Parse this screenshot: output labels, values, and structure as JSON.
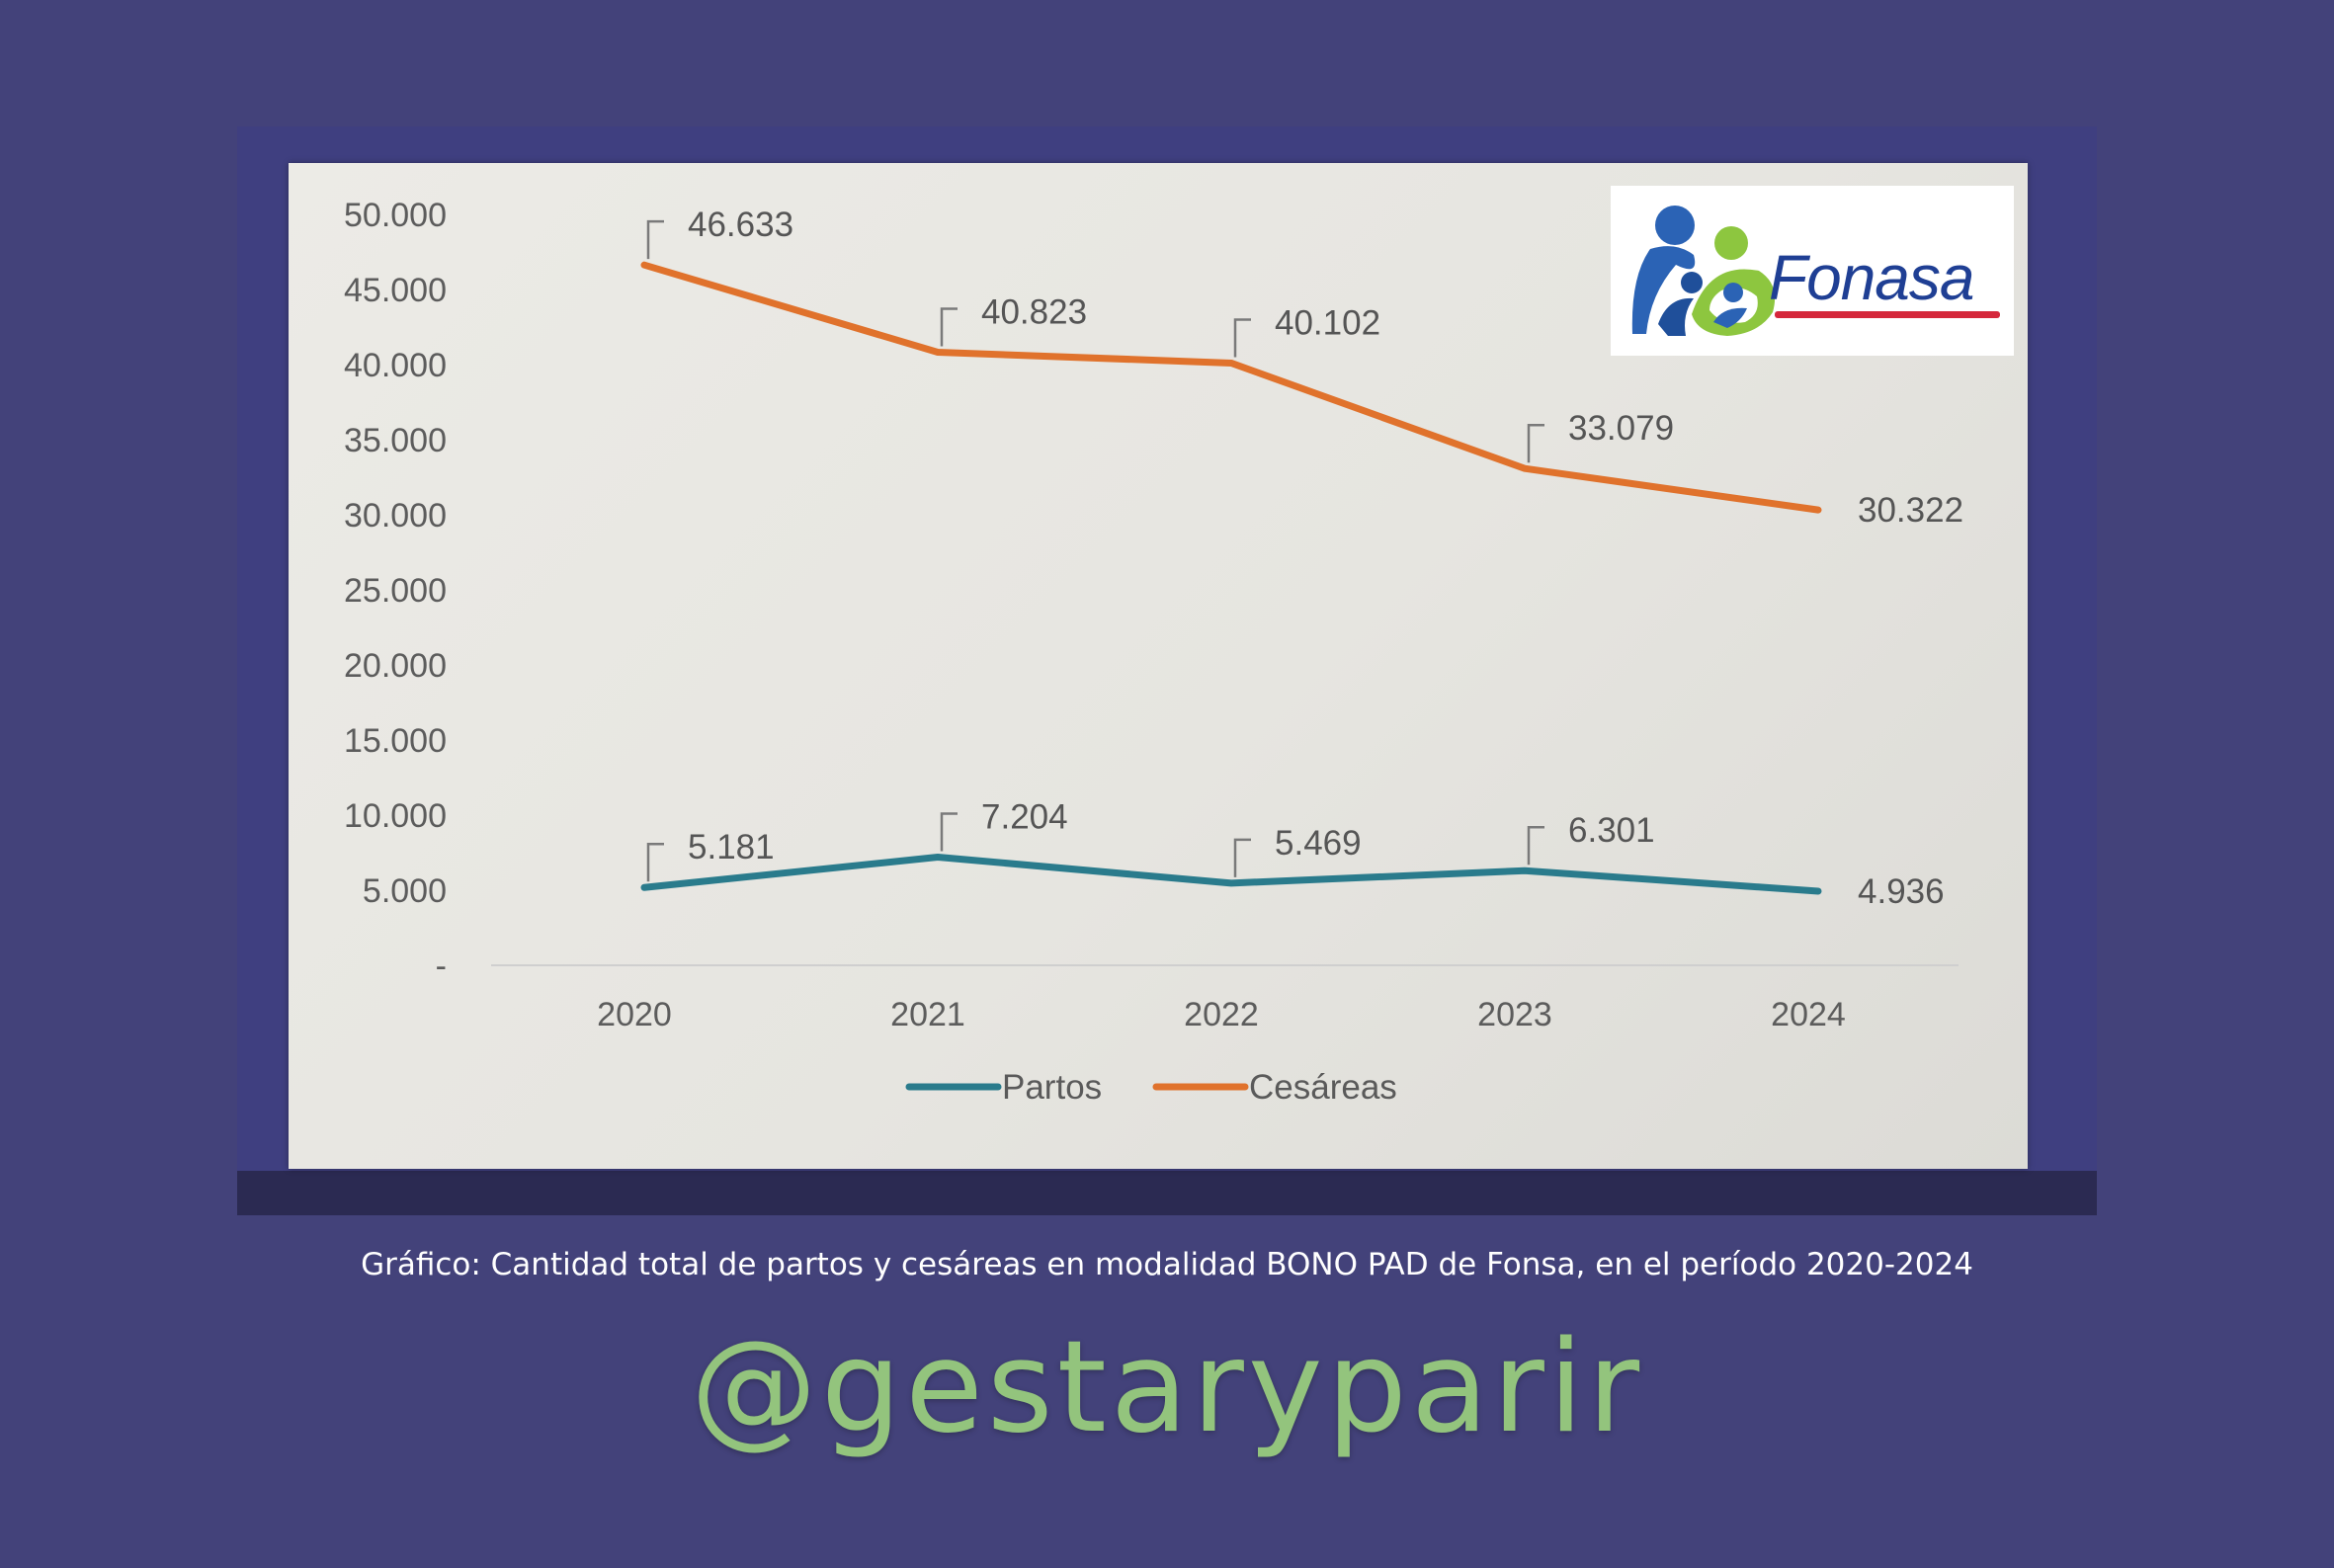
{
  "caption": "Gráfico: Cantidad total de partos y cesáreas en modalidad BONO PAD de Fonsa, en el período 2020-2024",
  "handle": "@gestaryparir",
  "logo": {
    "text": "Fonasa"
  },
  "colors": {
    "background": "#43427a",
    "partos": "#2a7b8c",
    "cesareas": "#e0722c",
    "handle": "#93c47d",
    "logo_text": "#1f3f94",
    "logo_underline": "#d5273b"
  },
  "chart_data": {
    "type": "line",
    "title": "",
    "xlabel": "",
    "ylabel": "",
    "categories": [
      "2020",
      "2021",
      "2022",
      "2023",
      "2024"
    ],
    "y_ticks": [
      "50.000",
      "45.000",
      "40.000",
      "35.000",
      "30.000",
      "25.000",
      "20.000",
      "15.000",
      "10.000",
      "5.000",
      "-"
    ],
    "ylim": [
      0,
      50000
    ],
    "grid": false,
    "legend_position": "bottom-center",
    "series": [
      {
        "name": "Partos",
        "color": "#2a7b8c",
        "values": [
          5181,
          7204,
          5469,
          6301,
          4936
        ],
        "labels": [
          "5.181",
          "7.204",
          "5.469",
          "6.301",
          "4.936"
        ]
      },
      {
        "name": "Cesáreas",
        "color": "#e0722c",
        "values": [
          46633,
          40823,
          40102,
          33079,
          30322
        ],
        "labels": [
          "46.633",
          "40.823",
          "40.102",
          "33.079",
          "30.322"
        ]
      }
    ]
  }
}
